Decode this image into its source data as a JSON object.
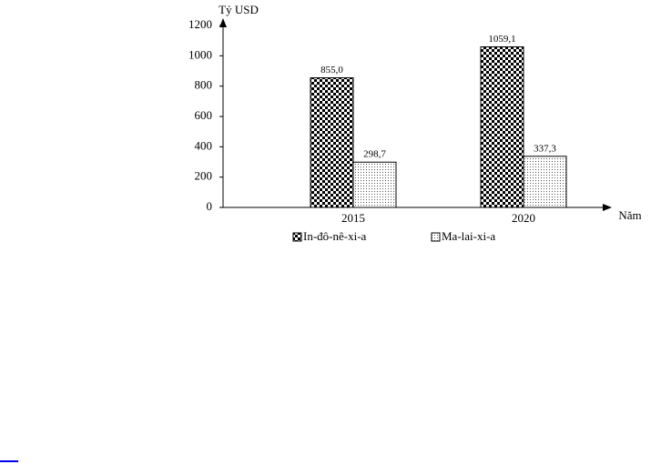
{
  "chart_data": {
    "type": "bar",
    "y_axis_label": "Tỷ USD",
    "x_axis_label": "Năm",
    "categories": [
      "2015",
      "2020"
    ],
    "series": [
      {
        "name": "In-đô-nê-xi-a",
        "pattern": "checker",
        "color": "#000000",
        "values": [
          855.0,
          1059.1
        ],
        "value_labels": [
          "855,0",
          "1059,1"
        ]
      },
      {
        "name": "Ma-lai-xi-a",
        "pattern": "dots",
        "color": "#000000",
        "values": [
          298.7,
          337.3
        ],
        "value_labels": [
          "298,7",
          "337,3"
        ]
      }
    ],
    "ylim": [
      0,
      1200
    ],
    "yticks": [
      0,
      200,
      400,
      600,
      800,
      1000,
      1200
    ]
  }
}
